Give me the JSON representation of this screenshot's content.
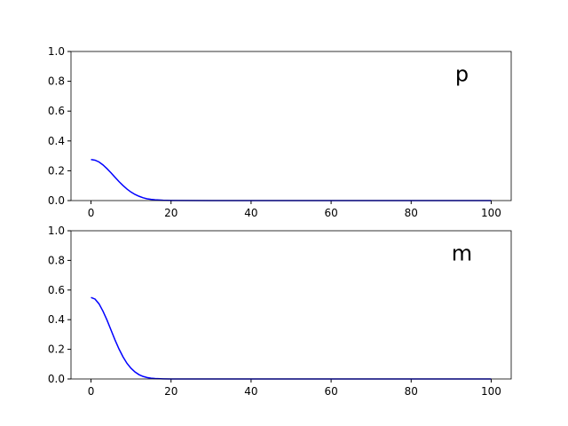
{
  "chart_data": [
    {
      "type": "line",
      "annotation": "p",
      "x": [
        0,
        1,
        2,
        3,
        4,
        5,
        6,
        7,
        8,
        9,
        10,
        11,
        12,
        13,
        14,
        15,
        16,
        18,
        20,
        30,
        40,
        50,
        60,
        70,
        80,
        90,
        100
      ],
      "series": [
        {
          "color": "#0000ff",
          "values": [
            0.275,
            0.271,
            0.259,
            0.239,
            0.214,
            0.186,
            0.156,
            0.127,
            0.101,
            0.077,
            0.057,
            0.041,
            0.029,
            0.019,
            0.012,
            0.008,
            0.005,
            0.002,
            0.001,
            0,
            0,
            0,
            0,
            0,
            0,
            0,
            0
          ]
        }
      ],
      "xlim": [
        -5,
        105
      ],
      "ylim": [
        0,
        1
      ],
      "xticks": [
        0,
        20,
        40,
        60,
        80,
        100
      ],
      "yticks": [
        {
          "value": 0,
          "label": "0.0"
        },
        0.2,
        0.4,
        0.6,
        0.8,
        {
          "value": 1,
          "label": "1.0"
        }
      ]
    },
    {
      "type": "line",
      "annotation": "m",
      "x": [
        0,
        1,
        2,
        3,
        4,
        5,
        6,
        7,
        8,
        9,
        10,
        11,
        12,
        13,
        14,
        15,
        16,
        18,
        20,
        30,
        40,
        50,
        60,
        70,
        80,
        90,
        100
      ],
      "series": [
        {
          "color": "#0000ff",
          "values": [
            0.55,
            0.539,
            0.507,
            0.457,
            0.397,
            0.33,
            0.263,
            0.202,
            0.149,
            0.105,
            0.072,
            0.047,
            0.029,
            0.017,
            0.01,
            0.005,
            0.003,
            0.001,
            0,
            0,
            0,
            0,
            0,
            0,
            0,
            0,
            0
          ]
        }
      ],
      "xlim": [
        -5,
        105
      ],
      "ylim": [
        0,
        1
      ],
      "xticks": [
        0,
        20,
        40,
        60,
        80,
        100
      ],
      "yticks": [
        {
          "value": 0,
          "label": "0.0"
        },
        0.2,
        0.4,
        0.6,
        0.8,
        {
          "value": 1,
          "label": "1.0"
        }
      ]
    }
  ]
}
